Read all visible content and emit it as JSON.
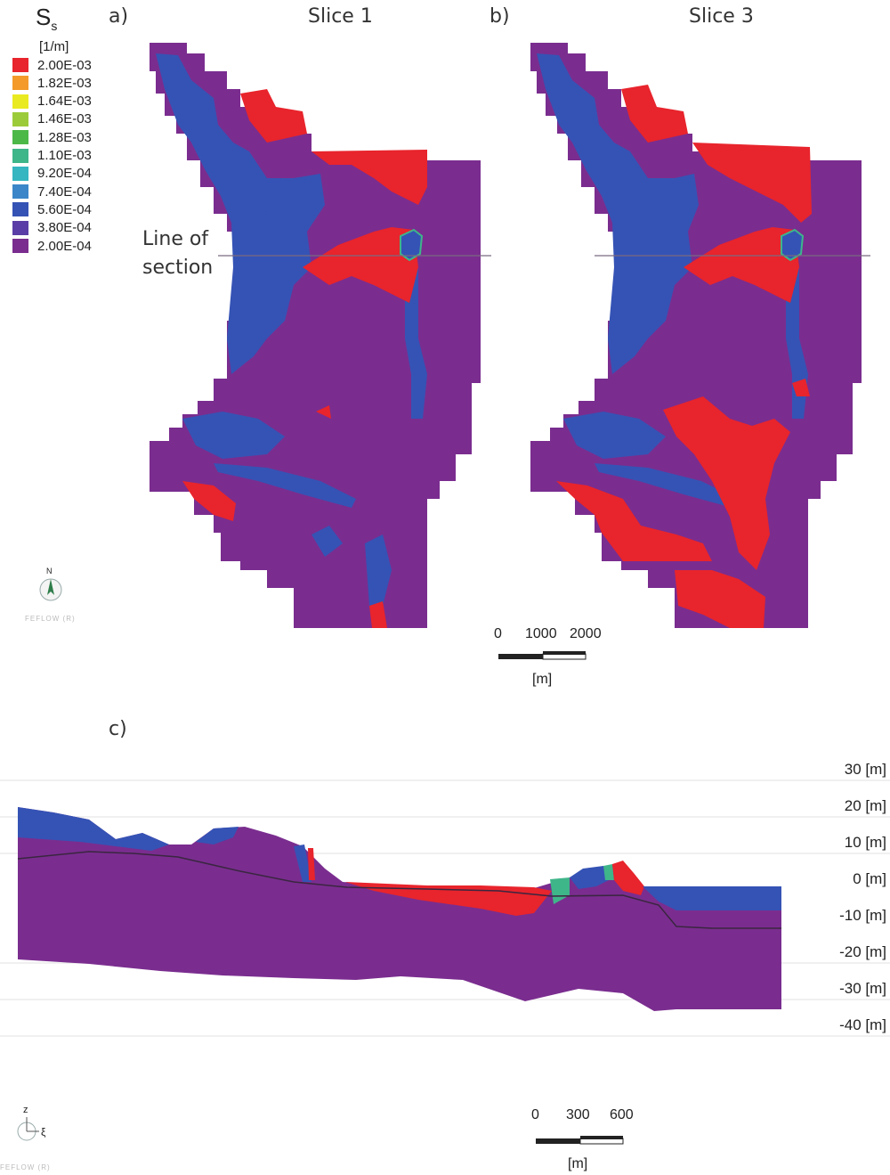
{
  "legend": {
    "title": "S",
    "subscript": "s",
    "unit": "[1/m]",
    "entries": [
      {
        "label": "2.00E-03",
        "color": "#e8242c"
      },
      {
        "label": "1.82E-03",
        "color": "#f39a2a"
      },
      {
        "label": "1.64E-03",
        "color": "#eaea22"
      },
      {
        "label": "1.46E-03",
        "color": "#9ccb3a"
      },
      {
        "label": "1.28E-03",
        "color": "#4cb848"
      },
      {
        "label": "1.10E-03",
        "color": "#3fb58a"
      },
      {
        "label": "9.20E-04",
        "color": "#35b6c0"
      },
      {
        "label": "7.40E-04",
        "color": "#3a86c8"
      },
      {
        "label": "5.60E-04",
        "color": "#3553b5"
      },
      {
        "label": "3.80E-04",
        "color": "#5a3da6"
      },
      {
        "label": "2.00E-04",
        "color": "#7a2d8f"
      }
    ]
  },
  "panels": {
    "a_label": "a)",
    "b_label": "b)",
    "c_label": "c)",
    "slice1_title": "Slice 1",
    "slice3_title": "Slice 3",
    "line_of_section_1": "Line of",
    "line_of_section_2": "section"
  },
  "map_scale": {
    "ticks": [
      "0",
      "1000",
      "2000"
    ],
    "unit": "[m]"
  },
  "section_scale": {
    "ticks": [
      "0",
      "300",
      "600"
    ],
    "unit": "[m]"
  },
  "section_axis": {
    "labels": [
      "30 [m]",
      "20 [m]",
      "10 [m]",
      "0 [m]",
      "-10 [m]",
      "-20 [m]",
      "-30 [m]",
      "-40 [m]"
    ]
  },
  "north_arrow": {
    "label": "N"
  },
  "orientation": {
    "z": "z",
    "xi": "ξ"
  },
  "watermark": {
    "top": "FEFLOW (R)",
    "bottom": "FEFLOW (R)"
  },
  "colors": {
    "purple": "#7a2d8f",
    "blue": "#3553b5",
    "red": "#e8242c",
    "green": "#3fb58a"
  }
}
